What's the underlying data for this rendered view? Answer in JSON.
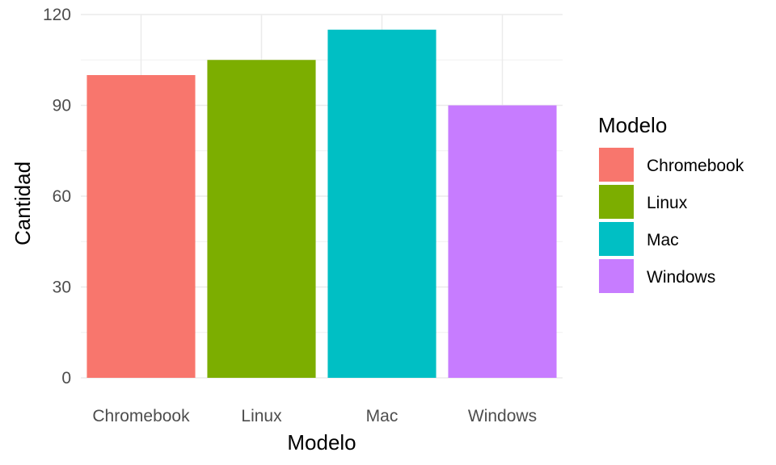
{
  "chart_data": {
    "type": "bar",
    "categories": [
      "Chromebook",
      "Linux",
      "Mac",
      "Windows"
    ],
    "values": [
      100,
      105,
      115,
      90
    ],
    "xlabel": "Modelo",
    "ylabel": "Cantidad",
    "ylim": [
      0,
      120
    ],
    "yticks": [
      0,
      30,
      60,
      90,
      120
    ],
    "grid": true,
    "colors": [
      "#F8766D",
      "#7CAE00",
      "#00BFC4",
      "#C77CFF"
    ],
    "legend": {
      "title": "Modelo",
      "placement": "right",
      "entries": [
        "Chromebook",
        "Linux",
        "Mac",
        "Windows"
      ]
    }
  }
}
